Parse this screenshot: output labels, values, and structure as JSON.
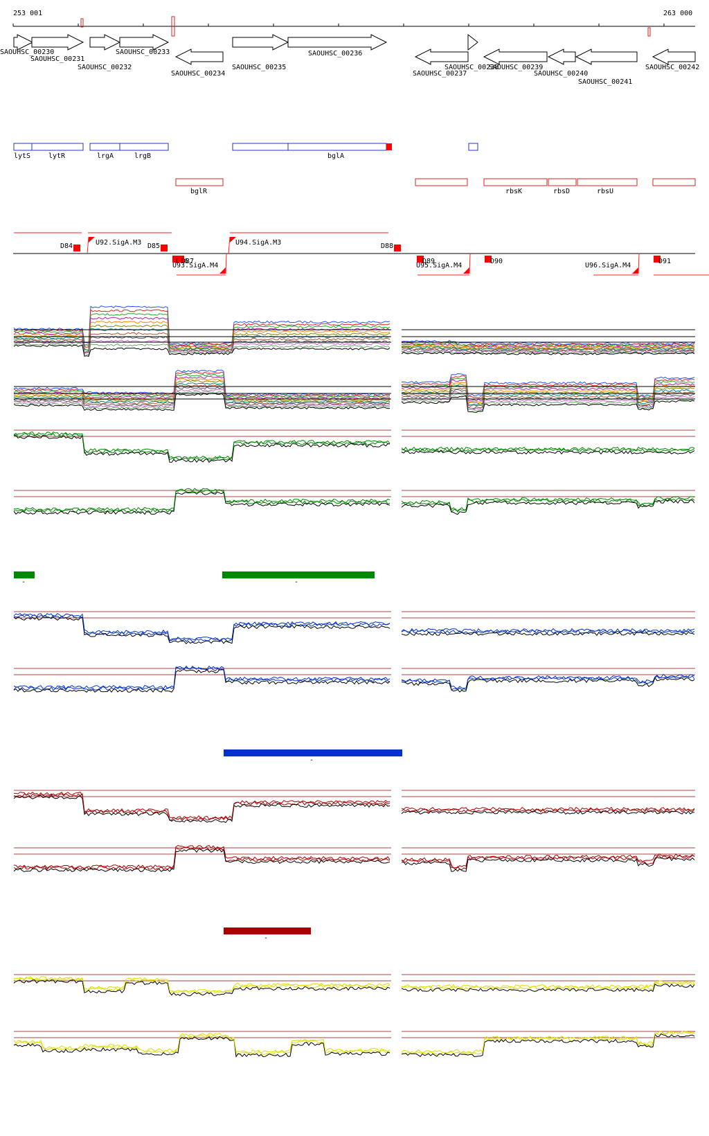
{
  "coords": {
    "start": "253 001",
    "end": "263 000"
  },
  "genes": [
    {
      "label": "SAOUHSC_00230",
      "dir": "fwd"
    },
    {
      "label": "SAOUHSC_00231",
      "dir": "fwd"
    },
    {
      "label": "SAOUHSC_00232",
      "dir": "fwd"
    },
    {
      "label": "SAOUHSC_00233",
      "dir": "fwd"
    },
    {
      "label": "SAOUHSC_00234",
      "dir": "rev"
    },
    {
      "label": "SAOUHSC_00235",
      "dir": "fwd"
    },
    {
      "label": "SAOUHSC_00236",
      "dir": "fwd"
    },
    {
      "label": "SAOUHSC_00237",
      "dir": "rev"
    },
    {
      "label": "SAOUHSC_00238",
      "dir": "fwd"
    },
    {
      "label": "SAOUHSC_00239",
      "dir": "rev"
    },
    {
      "label": "SAOUHSC_00240",
      "dir": "rev"
    },
    {
      "label": "SAOUHSC_00241",
      "dir": "rev"
    },
    {
      "label": "SAOUHSC_00242",
      "dir": "rev"
    }
  ],
  "names_fwd": [
    "lytS",
    "lytR",
    "lrgA",
    "lrgB",
    "",
    "bglA",
    ""
  ],
  "names_rev": [
    "bglR",
    "",
    "rbsK",
    "rbsD",
    "rbsU",
    ""
  ],
  "promoters_top": [
    "U92.SigA.M3",
    "U94.SigA.M3"
  ],
  "promoters_bottom": [
    "U93.SigA.M4",
    "U95.SigA.M4",
    "U96.SigA.M4"
  ],
  "terminators": [
    "D84",
    "D85",
    "D86",
    "D87",
    "D88",
    "D89",
    "D90",
    "D91"
  ],
  "condition_dashes": [
    "-",
    "-",
    "-",
    "-"
  ],
  "colors": {
    "gene_fwd_box": "#2233cc",
    "gene_rev_box": "#dd2222",
    "marker": "#ff0000",
    "green": "#008800",
    "blue": "#0033cc",
    "red": "#aa0000",
    "yellow": "#dddd00",
    "threshold": "#aa4444"
  }
}
